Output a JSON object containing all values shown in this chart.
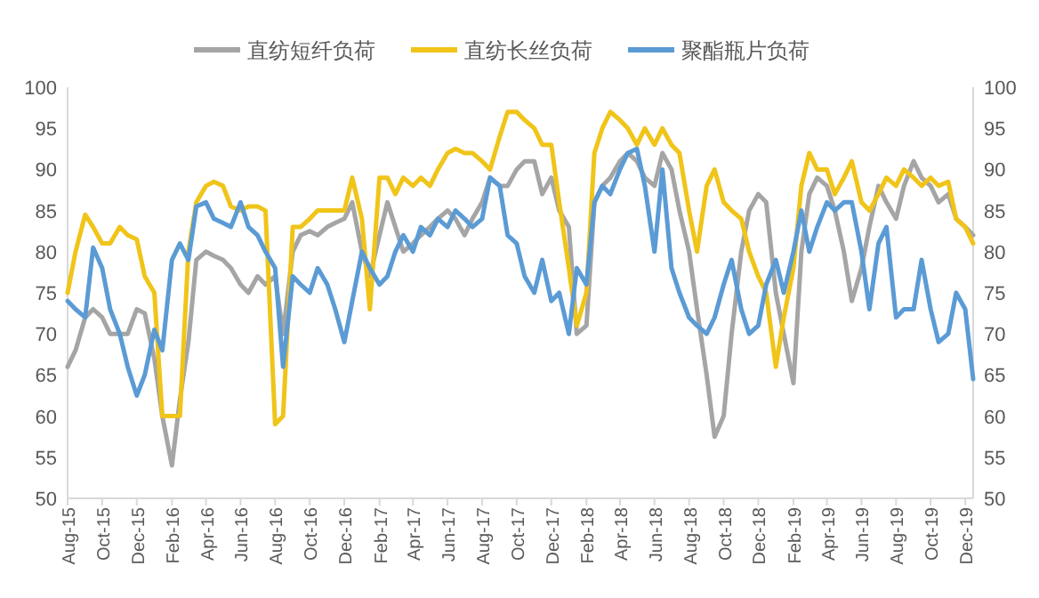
{
  "chart_data": {
    "type": "line",
    "legend": "top",
    "x": [
      "2015-08-01",
      "2015-08-15",
      "2015-09-01",
      "2015-09-15",
      "2015-10-01",
      "2015-10-15",
      "2015-11-01",
      "2015-11-15",
      "2015-12-01",
      "2015-12-15",
      "2016-01-01",
      "2016-01-15",
      "2016-02-01",
      "2016-02-15",
      "2016-03-01",
      "2016-03-15",
      "2016-04-01",
      "2016-04-15",
      "2016-05-01",
      "2016-05-15",
      "2016-06-01",
      "2016-06-15",
      "2016-07-01",
      "2016-07-15",
      "2016-08-01",
      "2016-08-15",
      "2016-09-01",
      "2016-09-15",
      "2016-10-01",
      "2016-10-15",
      "2016-11-01",
      "2016-11-15",
      "2016-12-01",
      "2016-12-15",
      "2017-01-01",
      "2017-01-15",
      "2017-02-01",
      "2017-02-15",
      "2017-03-01",
      "2017-03-15",
      "2017-04-01",
      "2017-04-15",
      "2017-05-01",
      "2017-05-15",
      "2017-06-01",
      "2017-06-15",
      "2017-07-01",
      "2017-07-15",
      "2017-08-01",
      "2017-08-15",
      "2017-09-01",
      "2017-09-15",
      "2017-10-01",
      "2017-10-15",
      "2017-11-01",
      "2017-11-15",
      "2017-12-01",
      "2017-12-15",
      "2018-01-01",
      "2018-01-15",
      "2018-02-01",
      "2018-02-15",
      "2018-03-01",
      "2018-03-15",
      "2018-04-01",
      "2018-04-15",
      "2018-05-01",
      "2018-05-15",
      "2018-06-01",
      "2018-06-15",
      "2018-07-01",
      "2018-07-15",
      "2018-08-01",
      "2018-08-15",
      "2018-09-01",
      "2018-09-15",
      "2018-10-01",
      "2018-10-15",
      "2018-11-01",
      "2018-11-15",
      "2018-12-01",
      "2018-12-15",
      "2019-01-01",
      "2019-01-15",
      "2019-02-01",
      "2019-02-15",
      "2019-03-01",
      "2019-03-15",
      "2019-04-01",
      "2019-04-15",
      "2019-05-01",
      "2019-05-15",
      "2019-06-01",
      "2019-06-15",
      "2019-07-01",
      "2019-07-15",
      "2019-08-01",
      "2019-08-15",
      "2019-09-01",
      "2019-09-15",
      "2019-10-01",
      "2019-10-15",
      "2019-11-01",
      "2019-11-15",
      "2019-12-01",
      "2019-12-15"
    ],
    "series": [
      {
        "name": "直纺短纤负荷",
        "color": "#a5a5a5",
        "values": [
          66,
          68,
          72,
          73,
          72,
          70,
          70,
          70,
          73,
          72.5,
          67,
          60,
          54,
          62,
          69,
          79,
          80,
          79.5,
          79,
          78,
          76,
          75,
          77,
          76,
          77,
          70,
          80,
          82,
          82.5,
          82,
          83,
          83.5,
          84,
          86,
          80,
          77,
          82,
          86,
          83,
          80,
          81,
          82,
          83,
          84,
          85,
          84,
          82,
          84,
          86,
          89,
          88,
          88,
          90,
          91,
          91,
          87,
          89,
          85,
          83,
          70,
          71,
          86,
          88,
          89,
          91,
          92,
          91,
          89,
          88,
          92,
          90,
          85,
          80,
          73,
          65,
          57.5,
          60,
          70,
          80,
          85,
          87,
          86,
          75,
          70,
          64,
          80,
          87,
          89,
          88,
          85,
          80,
          74,
          78,
          83,
          88,
          86,
          84,
          88,
          91,
          89,
          88,
          86,
          87,
          84,
          83,
          82
        ]
      },
      {
        "name": "直纺长丝负荷",
        "color": "#f0c419",
        "values": [
          75,
          80,
          84.5,
          83,
          81,
          81,
          83,
          82,
          81.5,
          77,
          75,
          60,
          60,
          60,
          80,
          86,
          88,
          88.5,
          88,
          85.5,
          85,
          85.5,
          85.5,
          85,
          59,
          60,
          83,
          83,
          84,
          85,
          85,
          85,
          85,
          89,
          84,
          73,
          89,
          89,
          87,
          89,
          88,
          89,
          88,
          90,
          92,
          92.5,
          92,
          92,
          91,
          90,
          94,
          97,
          97,
          96,
          95,
          93,
          93,
          86,
          78,
          71,
          75,
          92,
          95,
          97,
          96,
          95,
          93,
          95,
          93,
          95,
          93,
          92,
          85,
          80,
          88,
          90,
          86,
          85,
          84,
          80,
          77,
          75,
          66,
          72,
          78,
          88,
          92,
          90,
          90,
          87,
          89,
          91,
          86,
          85,
          87,
          89,
          88,
          90,
          89,
          88,
          89,
          88,
          88.5,
          84,
          83,
          81
        ]
      },
      {
        "name": "聚酯瓶片负荷",
        "color": "#5b9bd5",
        "values": [
          74,
          73,
          72,
          80.5,
          78,
          73,
          70,
          66,
          62.5,
          65,
          70.5,
          68,
          79,
          81,
          79,
          85.5,
          86,
          84,
          83.5,
          83,
          86,
          83,
          82,
          80,
          78,
          66,
          77,
          76,
          75,
          78,
          76,
          73,
          69,
          74,
          80,
          78,
          76,
          77,
          80,
          82,
          80,
          83,
          82,
          84,
          83,
          85,
          84,
          83,
          84,
          89,
          88,
          82,
          81,
          77,
          75,
          79,
          74,
          75,
          70,
          78,
          76,
          86,
          88,
          87,
          90,
          92,
          92.5,
          88,
          80,
          90,
          78,
          75,
          72,
          71,
          70,
          72,
          76,
          79,
          73,
          70,
          71,
          76,
          79,
          75,
          80,
          85,
          80,
          83,
          86,
          85,
          86,
          86,
          80,
          73,
          81,
          83,
          72,
          73,
          73,
          79,
          73,
          69,
          70,
          75,
          73,
          64.5
        ]
      }
    ],
    "xlim": [
      "2015-08-01",
      "2019-12-15"
    ],
    "xticks": [
      {
        "value": "2015-08-01",
        "label": "Aug-15"
      },
      {
        "value": "2015-10-01",
        "label": "Oct-15"
      },
      {
        "value": "2015-12-01",
        "label": "Dec-15"
      },
      {
        "value": "2016-02-01",
        "label": "Feb-16"
      },
      {
        "value": "2016-04-01",
        "label": "Apr-16"
      },
      {
        "value": "2016-06-01",
        "label": "Jun-16"
      },
      {
        "value": "2016-08-01",
        "label": "Aug-16"
      },
      {
        "value": "2016-10-01",
        "label": "Oct-16"
      },
      {
        "value": "2016-12-01",
        "label": "Dec-16"
      },
      {
        "value": "2017-02-01",
        "label": "Feb-17"
      },
      {
        "value": "2017-04-01",
        "label": "Apr-17"
      },
      {
        "value": "2017-06-01",
        "label": "Jun-17"
      },
      {
        "value": "2017-08-01",
        "label": "Aug-17"
      },
      {
        "value": "2017-10-01",
        "label": "Oct-17"
      },
      {
        "value": "2017-12-01",
        "label": "Dec-17"
      },
      {
        "value": "2018-02-01",
        "label": "Feb-18"
      },
      {
        "value": "2018-04-01",
        "label": "Apr-18"
      },
      {
        "value": "2018-06-01",
        "label": "Jun-18"
      },
      {
        "value": "2018-08-01",
        "label": "Aug-18"
      },
      {
        "value": "2018-10-01",
        "label": "Oct-18"
      },
      {
        "value": "2018-12-01",
        "label": "Dec-18"
      },
      {
        "value": "2019-02-01",
        "label": "Feb-19"
      },
      {
        "value": "2019-04-01",
        "label": "Apr-19"
      },
      {
        "value": "2019-06-01",
        "label": "Jun-19"
      },
      {
        "value": "2019-08-01",
        "label": "Aug-19"
      },
      {
        "value": "2019-10-01",
        "label": "Oct-19"
      },
      {
        "value": "2019-12-01",
        "label": "Dec-19"
      }
    ],
    "ylim": [
      50,
      100
    ],
    "yticks": [
      50,
      55,
      60,
      65,
      70,
      75,
      80,
      85,
      90,
      95,
      100
    ],
    "y2lim": [
      50,
      100
    ],
    "y2ticks": [
      50,
      55,
      60,
      65,
      70,
      75,
      80,
      85,
      90,
      95,
      100
    ]
  }
}
